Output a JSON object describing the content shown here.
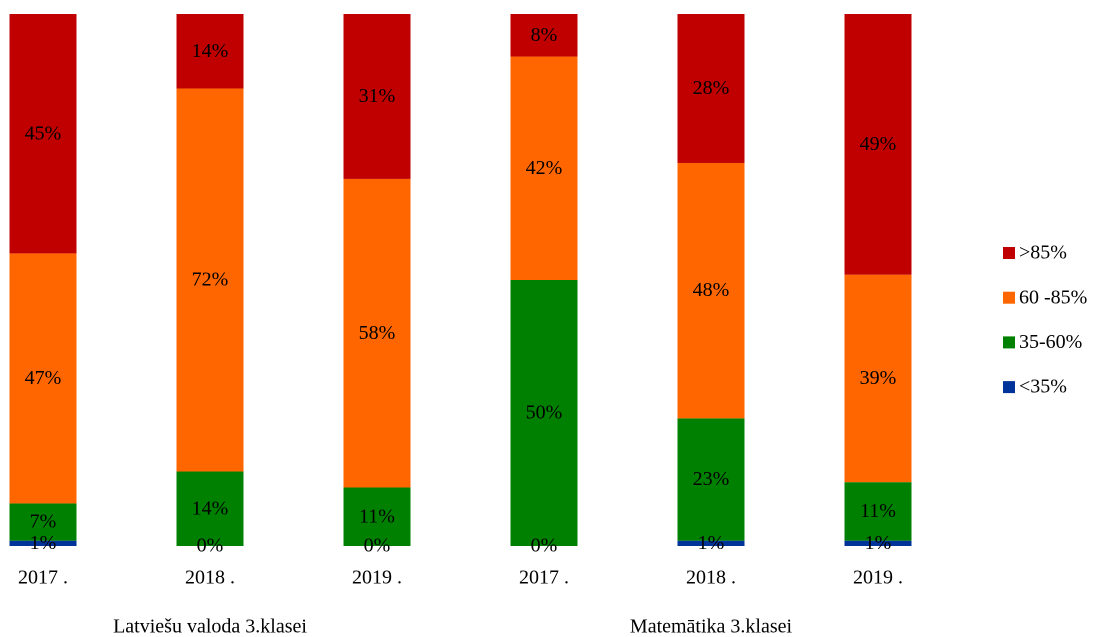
{
  "chart_data": {
    "type": "stacked_bar",
    "categories": [
      "2017 .",
      "2018 .",
      "2019 .",
      "2017 .",
      "2018 .",
      "2019 ."
    ],
    "groups": [
      {
        "label": "Latviešu valoda 3.klasei",
        "size": 3
      },
      {
        "label": "Matemātika 3.klasei",
        "size": 3
      }
    ],
    "ylim": [
      0,
      100
    ],
    "legend": "right",
    "series": [
      {
        "name": "<35%",
        "color": "#003399",
        "values": [
          1,
          0,
          0,
          0,
          1,
          1
        ],
        "value_labels": [
          "1%",
          "0%",
          "0%",
          "0%",
          "1%",
          "1%"
        ]
      },
      {
        "name": "35-60%",
        "color": "#008000",
        "values": [
          7,
          14,
          11,
          50,
          23,
          11
        ],
        "value_labels": [
          "7%",
          "14%",
          "11%",
          "50%",
          "23%",
          "11%"
        ]
      },
      {
        "name": "60 -85%",
        "color": "#ff6600",
        "values": [
          47,
          72,
          58,
          42,
          48,
          39
        ],
        "value_labels": [
          "47%",
          "72%",
          "58%",
          "42%",
          "48%",
          "39%"
        ]
      },
      {
        "name": ">85%",
        "color": "#c00000",
        "values": [
          45,
          14,
          31,
          8,
          28,
          49
        ],
        "value_labels": [
          "45%",
          "14%",
          "31%",
          "8%",
          "28%",
          "49%"
        ]
      }
    ]
  }
}
